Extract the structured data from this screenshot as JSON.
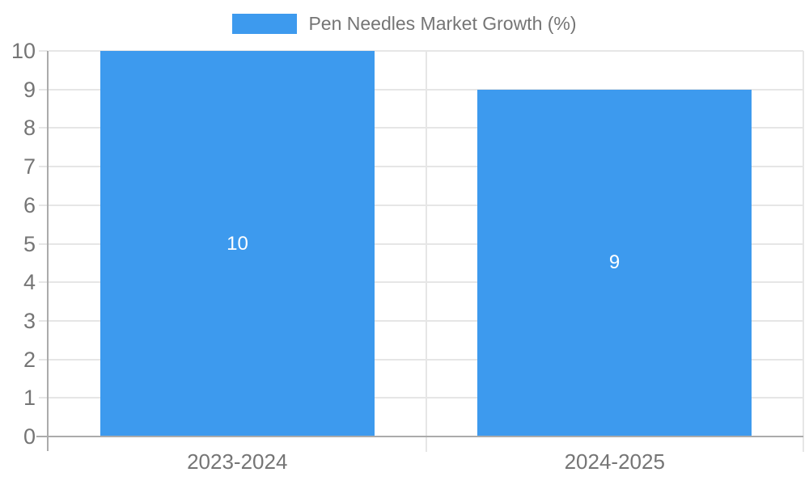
{
  "chart_data": {
    "type": "bar",
    "title": "Pen Needles Market Growth (%)",
    "categories": [
      "2023-2024",
      "2024-2025"
    ],
    "values": [
      10,
      9
    ],
    "xlabel": "",
    "ylabel": "",
    "ylim": [
      0,
      10
    ],
    "ytick_step": 1,
    "yticks": [
      "0",
      "1",
      "2",
      "3",
      "4",
      "5",
      "6",
      "7",
      "8",
      "9",
      "10"
    ],
    "grid": true,
    "legend_position": "top-center",
    "bar_value_labels_inside": true,
    "colors": {
      "bar": "#3D9AEE",
      "bar_value_label": "#FFFFFF",
      "axis_line": "#ABABAB",
      "gridline": "#E6E6E6",
      "tick_label": "#757575",
      "background": "#FFFFFF"
    }
  }
}
